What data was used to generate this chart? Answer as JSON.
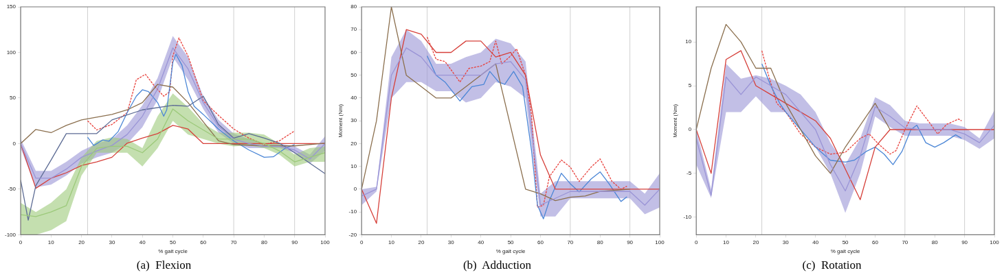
{
  "chart_data": [
    {
      "type": "line",
      "title": "(a)  Flexion",
      "xlabel": "% gait cycle",
      "xlim": [
        0,
        100
      ],
      "xticks": [
        0,
        10,
        20,
        30,
        40,
        50,
        60,
        70,
        80,
        90,
        100
      ],
      "ylim": [
        -100,
        150
      ],
      "yticks": [
        -100,
        -50,
        0,
        50,
        100,
        150
      ],
      "grid": false,
      "legend": false,
      "marker": "none",
      "ref_lines": [
        {
          "axis": "x",
          "value": 22,
          "color": "#d0d0d0"
        },
        {
          "axis": "x",
          "value": 70,
          "color": "#d0d0d0"
        },
        {
          "axis": "x",
          "value": 90,
          "color": "#d0d0d0"
        }
      ],
      "series": [
        {
          "color": "#9cc97a",
          "x": [
            0,
            5,
            10,
            15,
            20,
            25,
            30,
            35,
            40,
            45,
            50,
            55,
            60,
            65,
            70,
            75,
            80,
            85,
            90,
            95,
            100
          ],
          "values": [
            -78,
            -80,
            -75,
            -68,
            -25,
            -5,
            -3,
            -3,
            -10,
            5,
            38,
            25,
            15,
            5,
            5,
            5,
            0,
            -8,
            -20,
            -15,
            -10
          ],
          "lower": [
            -100,
            -100,
            -95,
            -85,
            -35,
            -10,
            -10,
            -10,
            -25,
            -5,
            25,
            10,
            5,
            0,
            -3,
            -2,
            -5,
            -12,
            -25,
            -20,
            -20
          ],
          "upper": [
            -65,
            -75,
            -65,
            -50,
            -15,
            3,
            7,
            5,
            -5,
            30,
            55,
            40,
            22,
            12,
            12,
            12,
            10,
            0,
            -12,
            -5,
            -3
          ]
        },
        {
          "color": "#9a94d6",
          "x": [
            0,
            5,
            10,
            15,
            20,
            25,
            30,
            35,
            40,
            45,
            50,
            55,
            60,
            65,
            70,
            75,
            80,
            85,
            90,
            95,
            100
          ],
          "values": [
            0,
            -38,
            -38,
            -28,
            -15,
            -8,
            -2,
            10,
            30,
            60,
            105,
            82,
            45,
            19,
            5,
            0,
            -3,
            -3,
            -7,
            -17,
            0
          ],
          "lower": [
            -5,
            -48,
            -45,
            -35,
            -22,
            -15,
            -10,
            0,
            18,
            48,
            95,
            70,
            38,
            12,
            0,
            -5,
            -5,
            -5,
            -10,
            -22,
            -8
          ],
          "upper": [
            5,
            -30,
            -30,
            -20,
            -8,
            0,
            5,
            20,
            42,
            72,
            118,
            95,
            52,
            26,
            11,
            5,
            0,
            0,
            -3,
            -12,
            8
          ]
        },
        {
          "color": "#5c6b94",
          "x": [
            0,
            2.5,
            5,
            10,
            15,
            20,
            25,
            30,
            40,
            50,
            55,
            60,
            65,
            70,
            75,
            80,
            85,
            90,
            100
          ],
          "values": [
            -40,
            -84,
            -46,
            -18,
            11,
            11,
            11,
            26,
            37,
            42,
            41,
            52,
            21,
            6,
            11,
            6,
            0.5,
            -10,
            -33
          ]
        },
        {
          "color": "#8b6f4e",
          "x": [
            0,
            5,
            10,
            15,
            20,
            25,
            30,
            35,
            40,
            45,
            50,
            55,
            60,
            65,
            70,
            80,
            90,
            100
          ],
          "values": [
            0,
            15.5,
            12,
            20,
            26,
            29,
            32,
            37,
            45,
            65,
            62,
            45,
            24,
            3,
            -1,
            -2.5,
            -2.5,
            0.5
          ]
        },
        {
          "color": "#d6403a",
          "x": [
            0,
            5,
            10,
            15,
            20,
            25,
            30,
            35,
            40,
            45,
            50,
            55,
            60,
            70,
            80,
            90,
            100
          ],
          "values": [
            0,
            -49,
            -38,
            -32,
            -24,
            -20,
            -15,
            0.5,
            6,
            11,
            20,
            16,
            0,
            0,
            0,
            0,
            0
          ]
        },
        {
          "color": "#4b86d6",
          "x": [
            22,
            24,
            27,
            29,
            32,
            35,
            38,
            40,
            42,
            45,
            47,
            48,
            50,
            51,
            53,
            55,
            57,
            60,
            65,
            70,
            75,
            80,
            83,
            87,
            90
          ],
          "values": [
            7,
            -2,
            4,
            2.6,
            13,
            34,
            52,
            59,
            57,
            45,
            30,
            37,
            89,
            98,
            86,
            57,
            41,
            32,
            16,
            3,
            -7,
            -15,
            -14.5,
            -5,
            -1
          ]
        },
        {
          "color": "#e8413c",
          "line_style": "dashed",
          "x": [
            22,
            25,
            30,
            35,
            38,
            41,
            44,
            47,
            49,
            50,
            52,
            55,
            60,
            65,
            70,
            75,
            80,
            85,
            90
          ],
          "values": [
            25,
            15,
            21,
            34,
            70,
            76,
            63,
            52,
            57,
            96,
            116,
            96,
            47,
            31,
            16,
            6,
            -1,
            3,
            14
          ]
        }
      ]
    },
    {
      "type": "line",
      "title": "(b)  Adduction",
      "xlabel": "% gait cycle",
      "ylabel": "Moment (Nm)",
      "xlim": [
        0,
        100
      ],
      "xticks": [
        0,
        10,
        20,
        30,
        40,
        50,
        60,
        70,
        80,
        90,
        100
      ],
      "ylim": [
        -20,
        80
      ],
      "yticks": [
        -20,
        -10,
        0,
        10,
        20,
        30,
        40,
        50,
        60,
        70,
        80
      ],
      "grid": false,
      "legend": false,
      "marker": "none",
      "ref_lines": [
        {
          "axis": "x",
          "value": 22,
          "color": "#d0d0d0"
        },
        {
          "axis": "x",
          "value": 70,
          "color": "#d0d0d0"
        },
        {
          "axis": "x",
          "value": 90,
          "color": "#d0d0d0"
        }
      ],
      "series": [
        {
          "color": "#9a94d6",
          "x": [
            0,
            5,
            10,
            15,
            20,
            25,
            30,
            35,
            40,
            45,
            50,
            55,
            60,
            65,
            70,
            75,
            80,
            85,
            90,
            95,
            100
          ],
          "values": [
            -3,
            0,
            50,
            62,
            58,
            50,
            50,
            50,
            50,
            55,
            56,
            48,
            -7,
            -4,
            -1,
            -1,
            -1,
            -1,
            -1,
            -7,
            0
          ],
          "lower": [
            -7,
            -1,
            40,
            47,
            47,
            43,
            43,
            38,
            40,
            47,
            45,
            40,
            -12,
            -12,
            -4,
            -4,
            -4,
            -4,
            -4,
            -11,
            -8
          ],
          "upper": [
            0,
            1,
            58,
            70,
            65,
            55,
            55,
            58,
            60,
            66,
            64,
            56,
            -2,
            3.5,
            3.5,
            3.5,
            3.5,
            3.5,
            3.5,
            -2,
            7
          ]
        },
        {
          "color": "#8b6f4e",
          "x": [
            0,
            5,
            10,
            15,
            20,
            25,
            30,
            40,
            45,
            55,
            60,
            65,
            70,
            75,
            80,
            90
          ],
          "values": [
            0,
            30,
            80,
            50,
            45,
            40,
            40,
            50,
            55,
            0,
            -2,
            -5,
            -3.5,
            -3,
            -1,
            0
          ]
        },
        {
          "color": "#d6403a",
          "x": [
            0,
            5,
            10,
            15,
            20,
            25,
            30,
            35,
            40,
            45,
            50,
            55,
            60,
            65,
            70,
            80,
            90,
            100
          ],
          "values": [
            0,
            -15,
            40,
            70,
            68,
            60,
            60,
            65,
            65,
            58,
            60,
            50,
            15,
            0,
            0,
            0,
            0,
            0
          ]
        },
        {
          "color": "#4b86d6",
          "x": [
            22,
            25,
            28,
            33,
            37,
            41,
            43,
            46,
            48,
            51,
            54,
            57,
            59,
            61,
            63,
            67,
            70,
            73,
            77,
            80,
            83,
            87,
            89
          ],
          "values": [
            58.5,
            50,
            47,
            38.7,
            45,
            46,
            51.7,
            47,
            46,
            51.7,
            45,
            17,
            -7,
            -13,
            -5,
            7,
            2.4,
            -1.2,
            4.5,
            7.6,
            2.4,
            -5.4,
            -3.3
          ]
        },
        {
          "color": "#e8413c",
          "line_style": "dashed",
          "x": [
            22,
            25,
            28,
            33,
            36,
            40,
            43,
            45,
            47,
            50,
            52,
            55,
            57,
            59,
            61,
            63,
            67,
            70,
            73,
            77,
            80,
            84,
            87,
            89
          ],
          "values": [
            66.8,
            57,
            56,
            47,
            53,
            54,
            56,
            65,
            55,
            58.5,
            61.6,
            50,
            32.5,
            -8,
            -7,
            5.5,
            12.8,
            9.7,
            3.4,
            9.7,
            13.3,
            3.4,
            0,
            1.3
          ]
        }
      ]
    },
    {
      "type": "line",
      "title": "(c)  Rotation",
      "xlabel": "% gait cycle",
      "ylabel": "Moment (Nm)",
      "xlim": [
        0,
        100
      ],
      "xticks": [
        0,
        10,
        20,
        30,
        40,
        50,
        60,
        70,
        80,
        90,
        100
      ],
      "ylim": [
        -12,
        14
      ],
      "yticks": [
        -10,
        -5,
        0,
        5,
        10
      ],
      "grid": false,
      "legend": false,
      "marker": "none",
      "ref_lines": [
        {
          "axis": "x",
          "value": 22,
          "color": "#d0d0d0"
        },
        {
          "axis": "x",
          "value": 70,
          "color": "#d0d0d0"
        },
        {
          "axis": "x",
          "value": 90,
          "color": "#d0d0d0"
        }
      ],
      "series": [
        {
          "color": "#9a94d6",
          "x": [
            0,
            5,
            10,
            15,
            20,
            25,
            30,
            35,
            40,
            45,
            50,
            55,
            60,
            65,
            70,
            75,
            80,
            85,
            90,
            95,
            100
          ],
          "values": [
            -1,
            -7.5,
            6,
            4,
            6,
            5,
            4,
            2,
            0,
            -4,
            -7,
            -3,
            2.6,
            1.5,
            0.2,
            0,
            0,
            0,
            -0.5,
            -1.5,
            0.5
          ],
          "lower": [
            -4,
            -7.8,
            2,
            2,
            3.8,
            2,
            2,
            0,
            -2,
            -5,
            -9.5,
            -5,
            1.5,
            0.3,
            -0.7,
            -0.7,
            -0.7,
            -0.7,
            -1.2,
            -2.2,
            -1
          ],
          "upper": [
            0,
            -6.8,
            7.5,
            5.8,
            6.2,
            5.8,
            5,
            4,
            2,
            -1.5,
            -4,
            -1,
            3.7,
            2.8,
            1,
            0.7,
            0.7,
            0.7,
            0.3,
            -1,
            2.2
          ]
        },
        {
          "color": "#8b6f4e",
          "x": [
            0,
            5,
            10,
            15,
            20,
            25,
            30,
            35,
            40,
            45,
            50,
            60,
            65
          ],
          "values": [
            0,
            7,
            12,
            10,
            7,
            7,
            3,
            0,
            -3,
            -5,
            -2,
            3,
            0
          ]
        },
        {
          "color": "#d6403a",
          "x": [
            0,
            5,
            10,
            15,
            20,
            25,
            30,
            35,
            40,
            45,
            50,
            55,
            60,
            65,
            70,
            80,
            90,
            100
          ],
          "values": [
            0,
            -5,
            8,
            9,
            5,
            4,
            3,
            2,
            1,
            -1,
            -4.5,
            -8,
            -2,
            0,
            0,
            0,
            0,
            0
          ]
        },
        {
          "color": "#4b86d6",
          "x": [
            22,
            25,
            28,
            30,
            35,
            40,
            45,
            50,
            53,
            57,
            60,
            63,
            66,
            69,
            72,
            74,
            77,
            80,
            83,
            87,
            89
          ],
          "values": [
            7.5,
            5,
            3,
            2,
            0,
            -2,
            -3.5,
            -3.7,
            -3.5,
            -2.5,
            -2,
            -2.8,
            -4,
            -2.5,
            0,
            0.5,
            -1.5,
            -2,
            -1.5,
            -0.6,
            -1
          ]
        },
        {
          "color": "#e8413c",
          "line_style": "dashed",
          "x": [
            22,
            24,
            27,
            30,
            35,
            40,
            45,
            50,
            55,
            58,
            61,
            65,
            67,
            70,
            74,
            78,
            81,
            84,
            88,
            89
          ],
          "values": [
            9,
            6.5,
            3,
            2,
            -0.5,
            -2,
            -2.8,
            -2.6,
            -1,
            -0.5,
            -1.6,
            -2.8,
            -2.4,
            0,
            2.7,
            0.9,
            -0.5,
            0.6,
            1.2,
            1
          ]
        }
      ]
    }
  ]
}
